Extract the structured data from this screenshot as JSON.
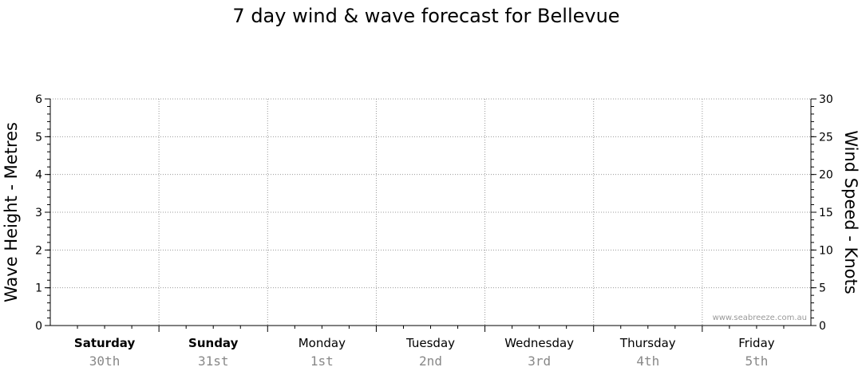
{
  "chart_data": {
    "type": "line",
    "title": "7 day wind & wave forecast for Bellevue",
    "ylabel_left": "Wave Height - Metres",
    "ylabel_right": "Wind Speed - Knots",
    "ylim_left": [
      0,
      6
    ],
    "ylim_right": [
      0,
      30
    ],
    "yticks_left": [
      0,
      1,
      2,
      3,
      4,
      5,
      6
    ],
    "yticks_right": [
      0,
      5,
      10,
      15,
      20,
      25,
      30
    ],
    "days": [
      {
        "name": "Saturday",
        "date": "30th",
        "bold": true
      },
      {
        "name": "Sunday",
        "date": "31st",
        "bold": true
      },
      {
        "name": "Monday",
        "date": "1st",
        "bold": false
      },
      {
        "name": "Tuesday",
        "date": "2nd",
        "bold": false
      },
      {
        "name": "Wednesday",
        "date": "3rd",
        "bold": false
      },
      {
        "name": "Thursday",
        "date": "4th",
        "bold": false
      },
      {
        "name": "Friday",
        "date": "5th",
        "bold": false
      }
    ],
    "series": [],
    "grid": true,
    "watermark": "www.seabreeze.com.au"
  }
}
